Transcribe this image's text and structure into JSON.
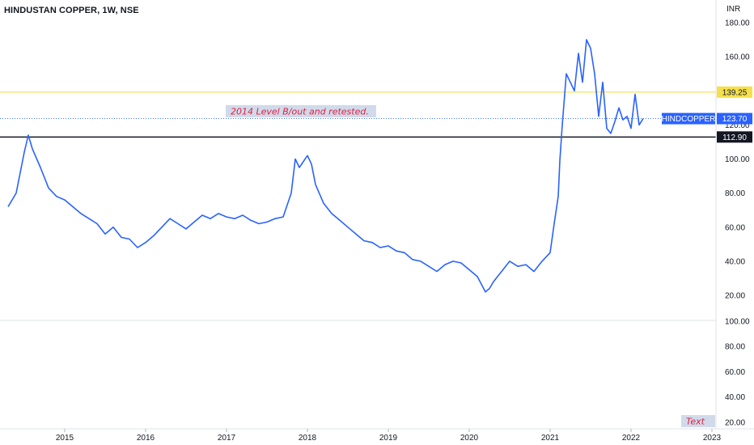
{
  "header": {
    "title": "HINDUSTAN COPPER, 1W, NSE",
    "currency": "INR"
  },
  "colors": {
    "line": "#2962ff",
    "resistance": "#f5e04b",
    "support": "#131722",
    "note_text": "#e02040",
    "note_bg": "#c9d3e6"
  },
  "annotations": {
    "main_note": "2014 Level B/out and retested.",
    "corner_note": "Text"
  },
  "price_tags": {
    "resistance": "139.25",
    "support": "112.90",
    "symbol": "HINDCOPPER",
    "last_price": "123.70"
  },
  "chart_data": [
    {
      "type": "line",
      "title": "HINDUSTAN COPPER, 1W, NSE",
      "ylabel": "INR",
      "ylim": [
        10,
        185
      ],
      "y_ticks": [
        "180.00",
        "160.00",
        "140.00",
        "120.00",
        "100.00",
        "80.00",
        "60.00",
        "40.00",
        "20.00"
      ],
      "x_ticks": [
        "2015",
        "2016",
        "2017",
        "2018",
        "2019",
        "2020",
        "2021",
        "2022",
        "2023"
      ],
      "grid": false,
      "horizontal_lines": [
        {
          "label": "139.25",
          "value": 139.25,
          "color": "#f5e04b"
        },
        {
          "label": "112.90",
          "value": 112.9,
          "color": "#131722"
        }
      ],
      "last_value": 123.7,
      "series": [
        {
          "name": "HINDCOPPER",
          "x": [
            2014.3,
            2014.4,
            2014.5,
            2014.55,
            2014.6,
            2014.7,
            2014.8,
            2014.9,
            2015.0,
            2015.1,
            2015.2,
            2015.3,
            2015.4,
            2015.5,
            2015.6,
            2015.7,
            2015.8,
            2015.9,
            2016.0,
            2016.1,
            2016.2,
            2016.3,
            2016.4,
            2016.5,
            2016.6,
            2016.7,
            2016.8,
            2016.9,
            2017.0,
            2017.1,
            2017.2,
            2017.3,
            2017.4,
            2017.5,
            2017.6,
            2017.7,
            2017.8,
            2017.85,
            2017.9,
            2018.0,
            2018.05,
            2018.1,
            2018.2,
            2018.3,
            2018.4,
            2018.5,
            2018.6,
            2018.7,
            2018.8,
            2018.9,
            2019.0,
            2019.1,
            2019.2,
            2019.3,
            2019.4,
            2019.5,
            2019.6,
            2019.7,
            2019.8,
            2019.9,
            2020.0,
            2020.1,
            2020.2,
            2020.25,
            2020.3,
            2020.4,
            2020.5,
            2020.6,
            2020.7,
            2020.8,
            2020.9,
            2021.0,
            2021.05,
            2021.1,
            2021.12,
            2021.15,
            2021.2,
            2021.3,
            2021.35,
            2021.4,
            2021.45,
            2021.5,
            2021.55,
            2021.6,
            2021.65,
            2021.7,
            2021.75,
            2021.8,
            2021.85,
            2021.9,
            2021.95,
            2022.0,
            2022.05,
            2022.1,
            2022.15
          ],
          "values": [
            72,
            80,
            104,
            114,
            106,
            95,
            83,
            78,
            76,
            72,
            68,
            65,
            62,
            56,
            60,
            54,
            53,
            48,
            51,
            55,
            60,
            65,
            62,
            59,
            63,
            67,
            65,
            68,
            66,
            65,
            67,
            64,
            62,
            63,
            65,
            66,
            80,
            100,
            95,
            102,
            97,
            85,
            74,
            68,
            64,
            60,
            56,
            52,
            51,
            48,
            49,
            46,
            45,
            41,
            40,
            37,
            34,
            38,
            40,
            39,
            35,
            31,
            22,
            24,
            28,
            34,
            40,
            37,
            38,
            34,
            40,
            45,
            62,
            78,
            99,
            120,
            150,
            140,
            162,
            145,
            170,
            165,
            150,
            125,
            145,
            118,
            115,
            122,
            130,
            123,
            125,
            118,
            138,
            120,
            123.7
          ]
        }
      ]
    },
    {
      "type": "line",
      "y_ticks": [
        "100.00",
        "80.00",
        "60.00",
        "40.00",
        "20.00"
      ],
      "ylim": [
        15,
        105
      ],
      "series": []
    }
  ]
}
